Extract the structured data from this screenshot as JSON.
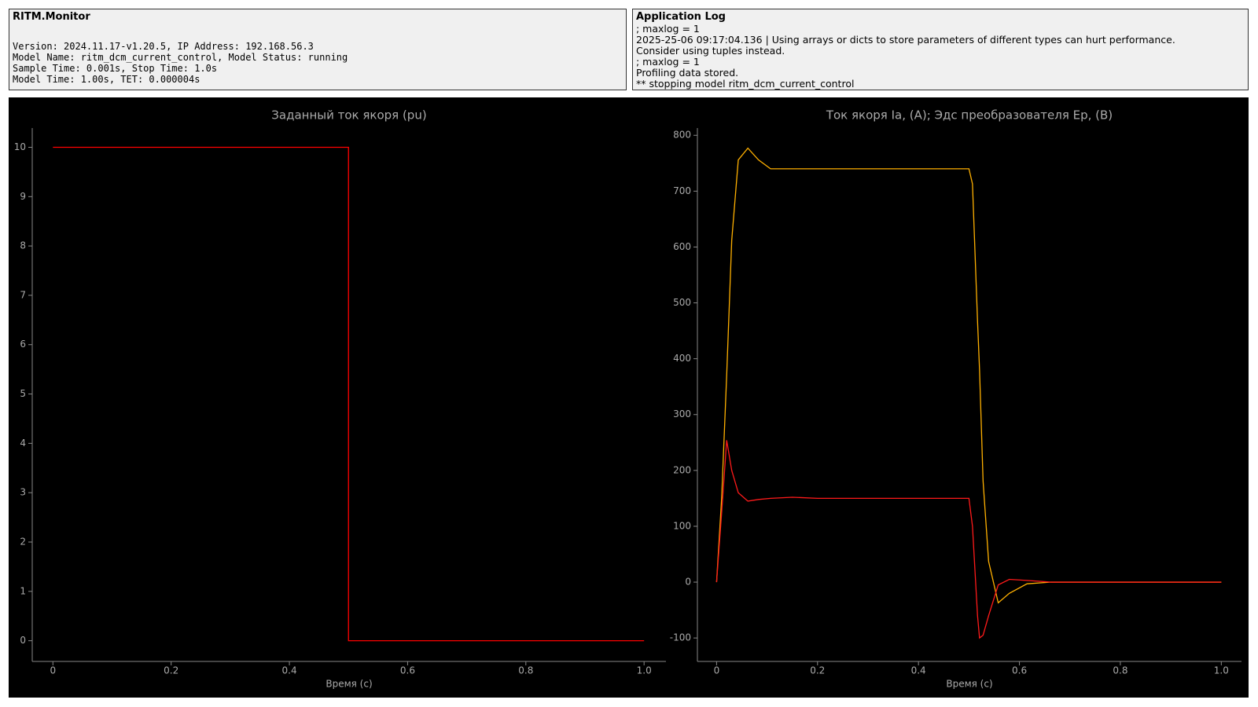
{
  "status_panel": {
    "title": "RITM.Monitor",
    "lines": [
      "Version: 2024.11.17-v1.20.5, IP Address: 192.168.56.3",
      "Model Name: ritm_dcm_current_control, Model Status: running",
      "Sample Time: 0.001s, Stop Time: 1.0s",
      "Model Time: 1.00s, TET: 0.000004s"
    ]
  },
  "log_panel": {
    "title": "Application Log",
    "lines": [
      "; maxlog = 1",
      "2025-25-06 09:17:04.136 | Using arrays or dicts to store parameters of different types can hurt performance.",
      "Consider using tuples instead.",
      "; maxlog = 1",
      "Profiling data stored.",
      "** stopping model ritm_dcm_current_control"
    ]
  },
  "chart_data": [
    {
      "type": "line",
      "title": "Заданный ток якоря (pu)",
      "x_label": "Время (с)",
      "x": [
        0,
        0.5,
        0.5,
        1.0
      ],
      "series": [
        {
          "color": "#ff0000",
          "values": [
            10,
            10,
            0,
            0
          ]
        }
      ],
      "xlim": [
        -0.035,
        1.037
      ],
      "ylim": [
        -0.42,
        10.39
      ],
      "xticks": [
        0,
        0.2,
        0.4,
        0.6,
        0.8,
        {
          "value": 1,
          "label": "1.0"
        }
      ],
      "yticks": [
        0,
        1,
        2,
        3,
        4,
        5,
        6,
        7,
        8,
        9,
        10
      ],
      "grid": false
    },
    {
      "type": "line",
      "title": "Ток якоря Ia, (А); Эдс преобразователя Ep, (В)",
      "x_label": "Время (с)",
      "x": [
        0,
        0.01,
        0.02,
        0.03,
        0.043,
        0.062,
        0.083,
        0.107,
        0.15,
        0.2,
        0.3,
        0.4,
        0.5,
        0.507,
        0.517,
        0.521,
        0.528,
        0.539,
        0.558,
        0.58,
        0.615,
        0.663,
        0.8,
        1.0
      ],
      "series": [
        {
          "color": "#ffb000",
          "values": [
            0,
            150,
            370,
            612,
            756,
            777,
            756,
            740,
            740,
            740,
            740,
            740,
            740,
            713,
            468,
            380,
            181,
            37,
            -37,
            -20,
            -3,
            0,
            0,
            0
          ]
        },
        {
          "color": "#ff1a1a",
          "values": [
            0,
            124,
            254,
            200,
            160,
            145,
            148,
            150,
            152,
            150,
            150,
            150,
            150,
            100,
            -60,
            -100,
            -95,
            -60,
            -5,
            5,
            3,
            0,
            0,
            0
          ]
        }
      ],
      "xlim": [
        -0.038,
        1.04
      ],
      "ylim": [
        -142,
        813
      ],
      "xticks": [
        0,
        0.2,
        0.4,
        0.6,
        0.8,
        {
          "value": 1,
          "label": "1.0"
        }
      ],
      "yticks": [
        -100,
        0,
        100,
        200,
        300,
        400,
        500,
        600,
        700,
        800
      ],
      "grid": false
    }
  ]
}
